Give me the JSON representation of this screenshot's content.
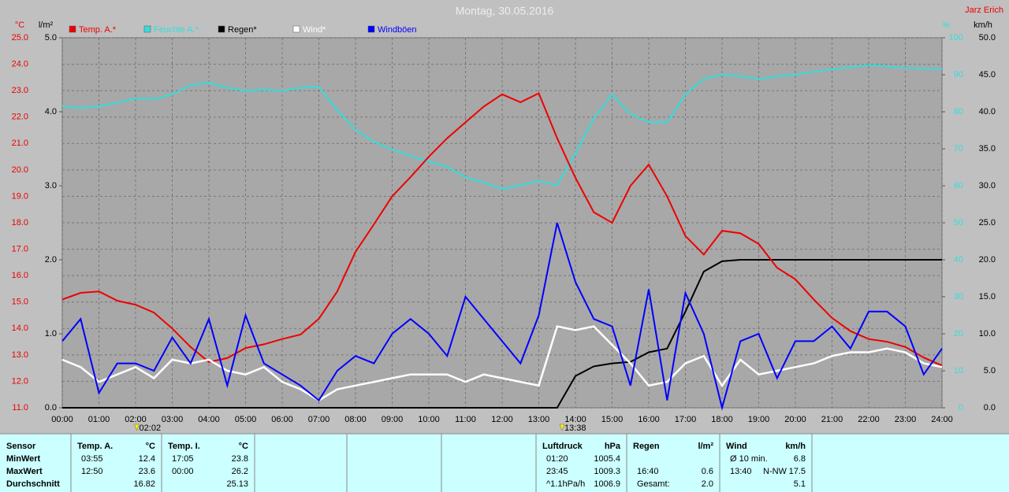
{
  "chart_data": {
    "type": "line",
    "title": "Montag, 30.05.2016",
    "author": "Jarz Erich",
    "ylabel": "°C",
    "y2label": "l/m²",
    "y3label": "%",
    "y4label": "km/h",
    "x": [
      0,
      0.5,
      1,
      1.5,
      2,
      2.5,
      3,
      3.5,
      4,
      4.5,
      5,
      5.5,
      6,
      6.5,
      7,
      7.5,
      8,
      8.5,
      9,
      9.5,
      10,
      10.5,
      11,
      11.5,
      12,
      12.5,
      13,
      13.5,
      14,
      14.5,
      15,
      15.5,
      16,
      16.5,
      17,
      17.5,
      18,
      18.5,
      19,
      19.5,
      20,
      20.5,
      21,
      21.5,
      22,
      22.5,
      23,
      23.5,
      24
    ],
    "xlim": [
      0,
      24
    ],
    "xticks": [
      {
        "value": 0,
        "label": "00:00"
      },
      {
        "value": 1,
        "label": "01:00"
      },
      {
        "value": 2,
        "label": "02:00"
      },
      {
        "value": 3,
        "label": "03:00"
      },
      {
        "value": 4,
        "label": "04:00"
      },
      {
        "value": 5,
        "label": "05:00"
      },
      {
        "value": 6,
        "label": "06:00"
      },
      {
        "value": 7,
        "label": "07:00"
      },
      {
        "value": 8,
        "label": "08:00"
      },
      {
        "value": 9,
        "label": "09:00"
      },
      {
        "value": 10,
        "label": "10:00"
      },
      {
        "value": 11,
        "label": "11:00"
      },
      {
        "value": 12,
        "label": "12:00"
      },
      {
        "value": 13,
        "label": "13:00"
      },
      {
        "value": 14,
        "label": "14:00"
      },
      {
        "value": 15,
        "label": "15:00"
      },
      {
        "value": 16,
        "label": "16:00"
      },
      {
        "value": 17,
        "label": "17:00"
      },
      {
        "value": 18,
        "label": "18:00"
      },
      {
        "value": 19,
        "label": "19:00"
      },
      {
        "value": 20,
        "label": "20:00"
      },
      {
        "value": 21,
        "label": "21:00"
      },
      {
        "value": 22,
        "label": "22:00"
      },
      {
        "value": 23,
        "label": "23:00"
      },
      {
        "value": 24,
        "label": "24:00"
      }
    ],
    "ylim": [
      11,
      25
    ],
    "yticks": [
      {
        "value": 11,
        "label": "11.0"
      },
      {
        "value": 12,
        "label": "12.0"
      },
      {
        "value": 13,
        "label": "13.0"
      },
      {
        "value": 14,
        "label": "14.0"
      },
      {
        "value": 15,
        "label": "15.0"
      },
      {
        "value": 16,
        "label": "16.0"
      },
      {
        "value": 17,
        "label": "17.0"
      },
      {
        "value": 18,
        "label": "18.0"
      },
      {
        "value": 19,
        "label": "19.0"
      },
      {
        "value": 20,
        "label": "20.0"
      },
      {
        "value": 21,
        "label": "21.0"
      },
      {
        "value": 22,
        "label": "22.0"
      },
      {
        "value": 23,
        "label": "23.0"
      },
      {
        "value": 24,
        "label": "24.0"
      },
      {
        "value": 25,
        "label": "25.0"
      }
    ],
    "y2lim": [
      0,
      5
    ],
    "y2ticks": [
      {
        "value": 0,
        "label": "0.0"
      },
      {
        "value": 1,
        "label": "1.0"
      },
      {
        "value": 2,
        "label": "2.0"
      },
      {
        "value": 3,
        "label": "3.0"
      },
      {
        "value": 4,
        "label": "4.0"
      },
      {
        "value": 5,
        "label": "5.0"
      }
    ],
    "y3lim": [
      0,
      100
    ],
    "y3ticks": [
      0,
      10,
      20,
      30,
      40,
      50,
      60,
      70,
      80,
      90,
      100
    ],
    "y4lim": [
      0,
      50
    ],
    "y4ticks": [
      {
        "value": 0,
        "label": "0.0"
      },
      {
        "value": 5,
        "label": "5.0"
      },
      {
        "value": 10,
        "label": "10.0"
      },
      {
        "value": 15,
        "label": "15.0"
      },
      {
        "value": 20,
        "label": "20.0"
      },
      {
        "value": 25,
        "label": "25.0"
      },
      {
        "value": 30,
        "label": "30.0"
      },
      {
        "value": 35,
        "label": "35.0"
      },
      {
        "value": 40,
        "label": "40.0"
      },
      {
        "value": 45,
        "label": "45.0"
      },
      {
        "value": 50,
        "label": "50.0"
      }
    ],
    "grid": true,
    "series": [
      {
        "name": "Temp. A.*",
        "color": "#ee0000",
        "axis": "y",
        "values": [
          15.1,
          15.35,
          15.4,
          15.05,
          14.9,
          14.6,
          14.0,
          13.3,
          12.73,
          12.88,
          13.26,
          13.4,
          13.6,
          13.77,
          14.37,
          15.4,
          16.9,
          17.94,
          19.0,
          19.73,
          20.5,
          21.2,
          21.8,
          22.4,
          22.86,
          22.56,
          22.9,
          21.2,
          19.7,
          18.4,
          18.0,
          19.4,
          20.2,
          19.0,
          17.5,
          16.8,
          17.7,
          17.6,
          17.2,
          16.3,
          15.86,
          15.1,
          14.4,
          13.9,
          13.6,
          13.5,
          13.3,
          12.9,
          12.6
        ]
      },
      {
        "name": "Feuchte A.*",
        "color": "#33dddd",
        "axis": "y3",
        "values": [
          81.5,
          81,
          81.5,
          82.5,
          83.6,
          83.5,
          84.7,
          87.2,
          87.9,
          86.5,
          85.7,
          86,
          85.7,
          86.5,
          86.8,
          80.4,
          75.1,
          71.9,
          69.8,
          68.1,
          66.6,
          65.1,
          62.3,
          60.9,
          59.1,
          60.2,
          61.3,
          60.2,
          68.7,
          78.3,
          84.7,
          79.4,
          77.2,
          77.2,
          84.7,
          88.9,
          90,
          89.6,
          88.9,
          89.6,
          90,
          90.8,
          91.5,
          92,
          92.6,
          92.3,
          91.9,
          91.7,
          91.5
        ]
      },
      {
        "name": "Regen*",
        "color": "#000000",
        "axis": "y2",
        "values": [
          0,
          0,
          0,
          0,
          0,
          0,
          0,
          0,
          0,
          0,
          0,
          0,
          0,
          0,
          0,
          0,
          0,
          0,
          0,
          0,
          0,
          0,
          0,
          0,
          0,
          0,
          0,
          0,
          0.43,
          0.56,
          0.6,
          0.62,
          0.75,
          0.8,
          1.3,
          1.84,
          1.98,
          2.0,
          2.0,
          2.0,
          2.0,
          2.0,
          2.0,
          2.0,
          2.0,
          2.0,
          2.0,
          2.0,
          2.0
        ]
      },
      {
        "name": "Wind*",
        "color": "#ffffff",
        "axis": "y4",
        "values": [
          6.5,
          5.5,
          3.5,
          4.5,
          5.5,
          4,
          6.5,
          6,
          6.5,
          5,
          4.5,
          5.5,
          3.5,
          2.5,
          1,
          2.5,
          3,
          3.5,
          4,
          4.5,
          4.5,
          4.5,
          3.5,
          4.5,
          4,
          3.5,
          3,
          11,
          10.5,
          11,
          8.5,
          6,
          3,
          3.5,
          6,
          7,
          3,
          6.5,
          4.5,
          5,
          5.5,
          6,
          7,
          7.5,
          7.5,
          8,
          7.5,
          6,
          5.5
        ]
      },
      {
        "name": "Windböen",
        "color": "#0000ff",
        "axis": "y4",
        "values": [
          9,
          12,
          2,
          6,
          6,
          5,
          9.5,
          6,
          12,
          3,
          12.5,
          6,
          4.5,
          3,
          1,
          5,
          7,
          6,
          10,
          12,
          10,
          7,
          15,
          12,
          9,
          6,
          12.5,
          25,
          17,
          12,
          11,
          3,
          16,
          1,
          15.5,
          10,
          0,
          9,
          10,
          4,
          9,
          9,
          11,
          8,
          13,
          13,
          11,
          4.5,
          8
        ]
      }
    ],
    "annotations": [
      {
        "x": 2.0333,
        "label": "02:02"
      },
      {
        "x": 13.6333,
        "label": "13:38"
      }
    ]
  },
  "table": {
    "sections": [
      {
        "title": "Sensor",
        "rows": [
          {
            "time": "MinWert"
          },
          {
            "time": "MaxWert"
          },
          {
            "time": "Durchschnitt"
          }
        ]
      },
      {
        "title": "Temp. A.",
        "unit": "°C",
        "rows": [
          {
            "time": "03:55",
            "value": "12.4"
          },
          {
            "time": "12:50",
            "value": "23.6"
          },
          {
            "value": "16.82"
          }
        ]
      },
      {
        "title": "Temp. I.",
        "unit": "°C",
        "rows": [
          {
            "time": "17:05",
            "value": "23.8"
          },
          {
            "time": "00:00",
            "value": "26.2"
          },
          {
            "value": "25.13"
          }
        ]
      },
      {
        "title": "Luftdruck",
        "unit": "hPa",
        "rows": [
          {
            "time": "01:20",
            "value": "1005.4"
          },
          {
            "time": "23:45",
            "value": "1009.3"
          },
          {
            "time": "^1.1hPa/h",
            "value": "1006.9"
          }
        ]
      },
      {
        "title": "Regen",
        "unit": "l/m²",
        "rows": [
          null,
          {
            "time": "16:40",
            "value": "0.6"
          },
          {
            "time": "Gesamt:",
            "value": "2.0"
          }
        ]
      },
      {
        "title": "Wind",
        "unit": "km/h",
        "rows": [
          {
            "time": "Ø 10 min.",
            "value": "6.8"
          },
          {
            "time": "13:40",
            "dir": "N-NW",
            "value": "17.5"
          },
          {
            "value": "5.1"
          }
        ]
      }
    ]
  }
}
